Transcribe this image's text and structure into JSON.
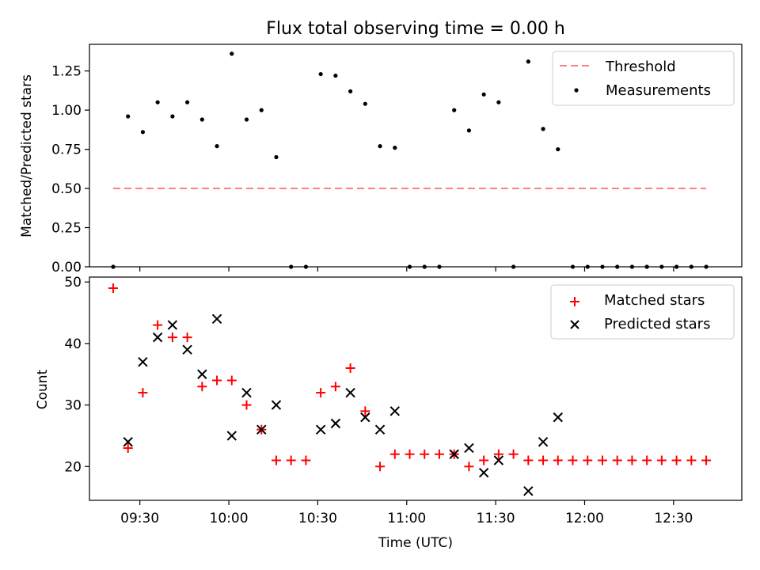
{
  "chart_data": [
    {
      "type": "scatter",
      "title": "Flux total observing time = 0.00 h",
      "ylabel": "Matched/Predicted stars",
      "xlabel": "",
      "ylim": [
        0,
        1.42
      ],
      "yticks": [
        "0.00",
        "0.25",
        "0.50",
        "0.75",
        "1.00",
        "1.25"
      ],
      "ytick_values": [
        0,
        0.25,
        0.5,
        0.75,
        1.0,
        1.25
      ],
      "xtick_labels_shown": false,
      "legend_position": "top-right",
      "threshold": {
        "name": "Threshold",
        "value": 0.5,
        "color": "#ff8080",
        "style": "dashed",
        "x_range": [
          "09:21",
          "12:41"
        ]
      },
      "series": [
        {
          "name": "Measurements",
          "color": "#000000",
          "marker": "dot",
          "x": [
            "09:21",
            "09:26",
            "09:31",
            "09:36",
            "09:41",
            "09:46",
            "09:51",
            "09:56",
            "10:01",
            "10:06",
            "10:11",
            "10:16",
            "10:21",
            "10:26",
            "10:31",
            "10:36",
            "10:41",
            "10:46",
            "10:51",
            "10:56",
            "11:01",
            "11:06",
            "11:11",
            "11:16",
            "11:21",
            "11:26",
            "11:31",
            "11:36",
            "11:41",
            "11:46",
            "11:51",
            "11:56",
            "12:01",
            "12:06",
            "12:11",
            "12:16",
            "12:21",
            "12:26",
            "12:31",
            "12:36",
            "12:41"
          ],
          "y": [
            0,
            0.96,
            0.86,
            1.05,
            0.96,
            1.05,
            0.94,
            0.77,
            1.36,
            0.94,
            1.0,
            0.7,
            0,
            0,
            1.23,
            1.22,
            1.12,
            1.04,
            0.77,
            0.76,
            0,
            0,
            0,
            1.0,
            0.87,
            1.1,
            1.05,
            0,
            1.31,
            0.88,
            0.75,
            0,
            0,
            0,
            0,
            0,
            0,
            0,
            0,
            0,
            0
          ]
        }
      ]
    },
    {
      "type": "scatter",
      "title": "",
      "ylabel": "Count",
      "xlabel": "Time (UTC)",
      "ylim": [
        14.5,
        50.8
      ],
      "yticks": [
        "20",
        "30",
        "40",
        "50"
      ],
      "ytick_values": [
        20,
        30,
        40,
        50
      ],
      "xlim": [
        "09:13",
        "12:53"
      ],
      "xticks": [
        "09:30",
        "10:00",
        "10:30",
        "11:00",
        "11:30",
        "12:00",
        "12:30"
      ],
      "legend_position": "top-right",
      "series": [
        {
          "name": "Matched stars",
          "color": "#ff0000",
          "marker": "plus",
          "x": [
            "09:21",
            "09:26",
            "09:31",
            "09:36",
            "09:41",
            "09:46",
            "09:51",
            "09:56",
            "10:01",
            "10:06",
            "10:11",
            "10:16",
            "10:21",
            "10:26",
            "10:31",
            "10:36",
            "10:41",
            "10:46",
            "10:51",
            "10:56",
            "11:01",
            "11:06",
            "11:11",
            "11:16",
            "11:21",
            "11:26",
            "11:31",
            "11:36",
            "11:41",
            "11:46",
            "11:51",
            "11:56",
            "12:01",
            "12:06",
            "12:11",
            "12:16",
            "12:21",
            "12:26",
            "12:31",
            "12:36",
            "12:41"
          ],
          "y": [
            49,
            23,
            32,
            43,
            41,
            41,
            33,
            34,
            34,
            30,
            26,
            21,
            21,
            21,
            32,
            33,
            36,
            29,
            20,
            22,
            22,
            22,
            22,
            22,
            20,
            21,
            22,
            22,
            21,
            21,
            21,
            21,
            21,
            21,
            21,
            21,
            21,
            21,
            21,
            21,
            21
          ]
        },
        {
          "name": "Predicted stars",
          "color": "#000000",
          "marker": "x",
          "x": [
            "09:26",
            "09:31",
            "09:36",
            "09:41",
            "09:46",
            "09:51",
            "09:56",
            "10:01",
            "10:06",
            "10:11",
            "10:16",
            "10:31",
            "10:36",
            "10:41",
            "10:46",
            "10:51",
            "10:56",
            "11:16",
            "11:21",
            "11:26",
            "11:31",
            "11:41",
            "11:46",
            "11:51"
          ],
          "y": [
            24,
            37,
            41,
            43,
            39,
            35,
            44,
            25,
            32,
            26,
            30,
            26,
            27,
            32,
            28,
            26,
            29,
            22,
            23,
            19,
            21,
            16,
            24,
            28
          ]
        }
      ]
    }
  ]
}
